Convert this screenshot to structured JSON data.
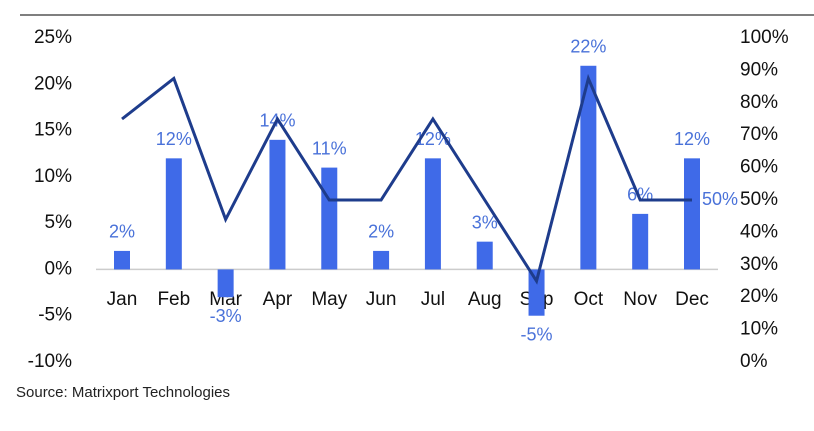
{
  "chart_data": {
    "type": "bar-line",
    "source": "Source: Matrixport Technologies",
    "categories": [
      "Jan",
      "Feb",
      "Mar",
      "Apr",
      "May",
      "Jun",
      "Jul",
      "Aug",
      "Sep",
      "Oct",
      "Nov",
      "Dec"
    ],
    "series": [
      {
        "type": "bar",
        "color": "#3f6ae8",
        "values": [
          2,
          12,
          -3,
          14,
          11,
          2,
          12,
          3,
          -5,
          22,
          6,
          12
        ],
        "value_labels": [
          "2%",
          "12%",
          "-3%",
          "14%",
          "11%",
          "2%",
          "12%",
          "3%",
          "-5%",
          "22%",
          "6%",
          "12%"
        ]
      },
      {
        "type": "line",
        "color": "#1e3c8c",
        "axis": "y2",
        "values": [
          75,
          87.5,
          44,
          75,
          50,
          50,
          75,
          50,
          25,
          87.5,
          50,
          50
        ],
        "value_labels": [
          null,
          null,
          null,
          null,
          null,
          null,
          null,
          null,
          null,
          null,
          null,
          "50%"
        ]
      }
    ],
    "ylim": [
      -10,
      25
    ],
    "yticks": [
      {
        "value": -10,
        "label": "-10%"
      },
      {
        "value": -5,
        "label": "-5%"
      },
      {
        "value": 0,
        "label": "0%"
      },
      {
        "value": 5,
        "label": "5%"
      },
      {
        "value": 10,
        "label": "10%"
      },
      {
        "value": 15,
        "label": "15%"
      },
      {
        "value": 20,
        "label": "20%"
      },
      {
        "value": 25,
        "label": "25%"
      }
    ],
    "y2lim": [
      0,
      100
    ],
    "y2ticks": [
      {
        "value": 0,
        "label": "0%"
      },
      {
        "value": 10,
        "label": "10%"
      },
      {
        "value": 20,
        "label": "20%"
      },
      {
        "value": 30,
        "label": "30%"
      },
      {
        "value": 40,
        "label": "40%"
      },
      {
        "value": 50,
        "label": "50%"
      },
      {
        "value": 60,
        "label": "60%"
      },
      {
        "value": 70,
        "label": "70%"
      },
      {
        "value": 80,
        "label": "80%"
      },
      {
        "value": 90,
        "label": "90%"
      },
      {
        "value": 100,
        "label": "100%"
      }
    ]
  }
}
